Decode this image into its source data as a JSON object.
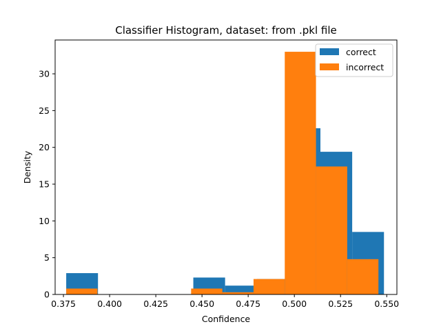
{
  "chart_data": {
    "type": "bar",
    "title": "Classifier Histogram, dataset: from .pkl file",
    "xlabel": "Confidence",
    "ylabel": "Density",
    "xlim": [
      0.3705,
      0.5555
    ],
    "ylim": [
      0,
      34.6
    ],
    "xticks": [
      0.375,
      0.4,
      0.425,
      0.45,
      0.475,
      0.5,
      0.525,
      0.55
    ],
    "xtick_labels": [
      "0.375",
      "0.400",
      "0.425",
      "0.450",
      "0.475",
      "0.500",
      "0.525",
      "0.550"
    ],
    "yticks": [
      0,
      5,
      10,
      15,
      20,
      25,
      30
    ],
    "ytick_labels": [
      "0",
      "5",
      "10",
      "15",
      "20",
      "25",
      "30"
    ],
    "legend_position": "top-right",
    "grid": false,
    "series": [
      {
        "name": "correct",
        "color": "#1f77b4",
        "bins": [
          {
            "x0": 0.3765,
            "x1": 0.3937,
            "value": 2.9
          },
          {
            "x0": 0.3937,
            "x1": 0.4109,
            "value": 0
          },
          {
            "x0": 0.4109,
            "x1": 0.4281,
            "value": 0
          },
          {
            "x0": 0.4281,
            "x1": 0.4453,
            "value": 0
          },
          {
            "x0": 0.4453,
            "x1": 0.4625,
            "value": 2.3
          },
          {
            "x0": 0.4625,
            "x1": 0.4797,
            "value": 1.2
          },
          {
            "x0": 0.4797,
            "x1": 0.4969,
            "value": 2.1
          },
          {
            "x0": 0.4969,
            "x1": 0.5141,
            "value": 22.6
          },
          {
            "x0": 0.5141,
            "x1": 0.5313,
            "value": 19.4
          },
          {
            "x0": 0.5313,
            "x1": 0.5485,
            "value": 8.5
          }
        ]
      },
      {
        "name": "incorrect",
        "color": "#ff7f0e",
        "bins": [
          {
            "x0": 0.3765,
            "x1": 0.3934,
            "value": 0.8
          },
          {
            "x0": 0.3934,
            "x1": 0.4103,
            "value": 0
          },
          {
            "x0": 0.4103,
            "x1": 0.4272,
            "value": 0
          },
          {
            "x0": 0.4272,
            "x1": 0.4441,
            "value": 0
          },
          {
            "x0": 0.4441,
            "x1": 0.461,
            "value": 0.8
          },
          {
            "x0": 0.461,
            "x1": 0.4779,
            "value": 0.3
          },
          {
            "x0": 0.4779,
            "x1": 0.4948,
            "value": 2.1
          },
          {
            "x0": 0.4948,
            "x1": 0.5117,
            "value": 33.0
          },
          {
            "x0": 0.5117,
            "x1": 0.5286,
            "value": 17.4
          },
          {
            "x0": 0.5286,
            "x1": 0.5455,
            "value": 4.8
          }
        ]
      }
    ]
  }
}
